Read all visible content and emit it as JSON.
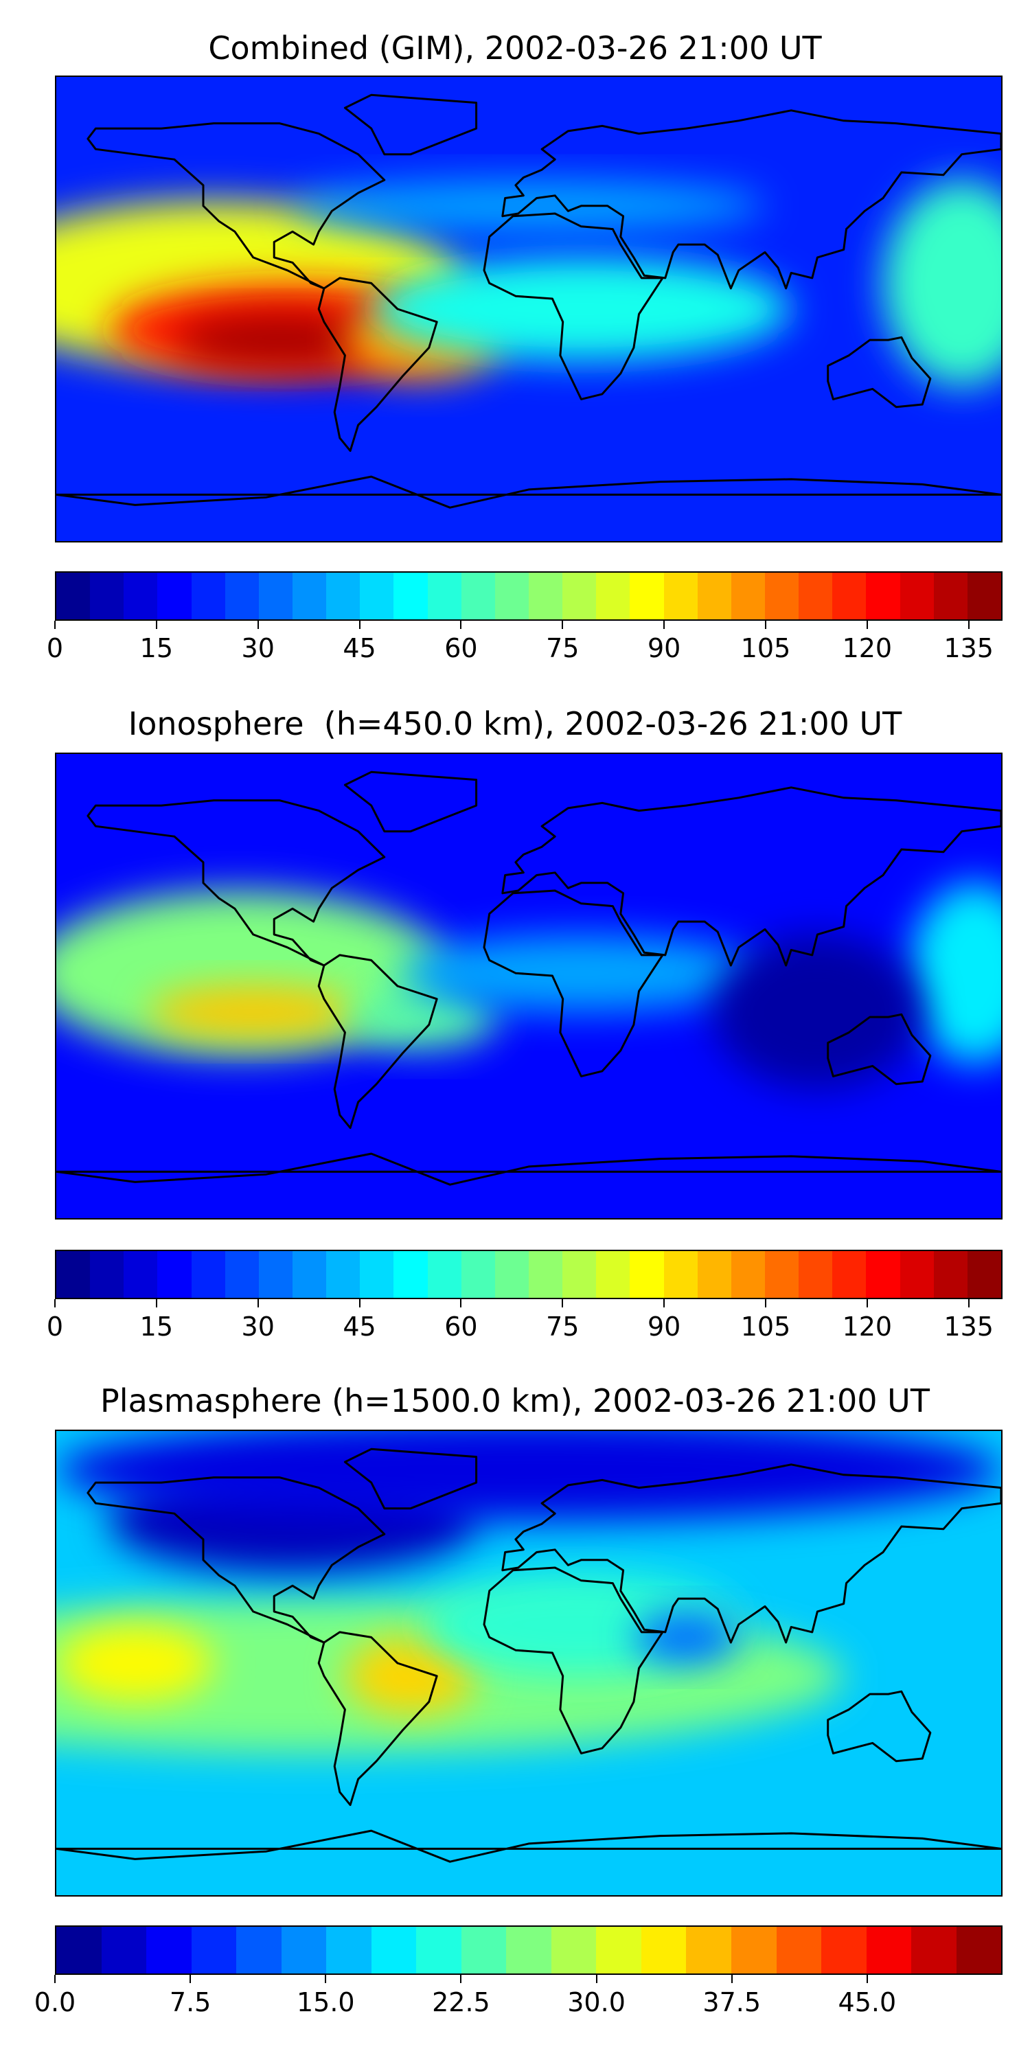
{
  "panels": [
    {
      "id": "combined",
      "title": "Combined (GIM), 2002-03-26 21:00 UT",
      "colorbar": {
        "min": 0,
        "max": 140,
        "steps": 28,
        "ticks": [
          0,
          15,
          30,
          45,
          60,
          75,
          90,
          105,
          120,
          135
        ],
        "tick_labels": [
          "0",
          "15",
          "30",
          "45",
          "60",
          "75",
          "90",
          "105",
          "120",
          "135"
        ]
      },
      "background_level": 22,
      "blobs": [
        {
          "lon": -120,
          "lat": 10,
          "rx": 95,
          "ry": 32,
          "level": 85
        },
        {
          "lon": -90,
          "lat": -8,
          "rx": 70,
          "ry": 18,
          "level": 120
        },
        {
          "lon": -95,
          "lat": -12,
          "rx": 40,
          "ry": 10,
          "level": 135
        },
        {
          "lon": -40,
          "lat": -12,
          "rx": 30,
          "ry": 15,
          "level": 100
        },
        {
          "lon": 20,
          "lat": 0,
          "rx": 80,
          "ry": 20,
          "level": 55
        },
        {
          "lon": 165,
          "lat": 10,
          "rx": 30,
          "ry": 40,
          "level": 60
        },
        {
          "lon": 0,
          "lat": 40,
          "rx": 90,
          "ry": 10,
          "level": 40
        }
      ]
    },
    {
      "id": "ionosphere",
      "title": "Ionosphere  (h=450.0 km), 2002-03-26 21:00 UT",
      "colorbar": {
        "min": 0,
        "max": 140,
        "steps": 28,
        "ticks": [
          0,
          15,
          30,
          45,
          60,
          75,
          90,
          105,
          120,
          135
        ],
        "tick_labels": [
          "0",
          "15",
          "30",
          "45",
          "60",
          "75",
          "90",
          "105",
          "120",
          "135"
        ]
      },
      "background_level": 18,
      "blobs": [
        {
          "lon": -110,
          "lat": 5,
          "rx": 80,
          "ry": 32,
          "level": 70
        },
        {
          "lon": -105,
          "lat": -10,
          "rx": 40,
          "ry": 10,
          "level": 95
        },
        {
          "lon": -40,
          "lat": -12,
          "rx": 28,
          "ry": 12,
          "level": 65
        },
        {
          "lon": 20,
          "lat": 5,
          "rx": 70,
          "ry": 15,
          "level": 40
        },
        {
          "lon": 170,
          "lat": 5,
          "rx": 25,
          "ry": 35,
          "level": 50
        },
        {
          "lon": 110,
          "lat": -10,
          "rx": 40,
          "ry": 30,
          "level": 5
        }
      ]
    },
    {
      "id": "plasmasphere",
      "title": "Plasmasphere (h=1500.0 km), 2002-03-26 21:00 UT",
      "colorbar": {
        "min": 0,
        "max": 52.5,
        "steps": 21,
        "ticks": [
          0,
          7.5,
          15,
          22.5,
          30,
          37.5,
          45
        ],
        "tick_labels": [
          "0.0",
          "7.5",
          "15.0",
          "22.5",
          "30.0",
          "37.5",
          "45.0"
        ]
      },
      "background_level": 17,
      "blobs": [
        {
          "lon": -80,
          "lat": -5,
          "rx": 200,
          "ry": 30,
          "level": 26
        },
        {
          "lon": -150,
          "lat": 0,
          "rx": 30,
          "ry": 15,
          "level": 33
        },
        {
          "lon": -45,
          "lat": -5,
          "rx": 25,
          "ry": 15,
          "level": 35
        },
        {
          "lon": 20,
          "lat": 15,
          "rx": 60,
          "ry": 20,
          "level": 22
        },
        {
          "lon": 60,
          "lat": 10,
          "rx": 20,
          "ry": 10,
          "level": 12
        },
        {
          "lon": -90,
          "lat": 55,
          "rx": 70,
          "ry": 20,
          "level": 3
        },
        {
          "lon": 0,
          "lat": 75,
          "rx": 180,
          "ry": 20,
          "level": 5
        }
      ]
    }
  ]
}
